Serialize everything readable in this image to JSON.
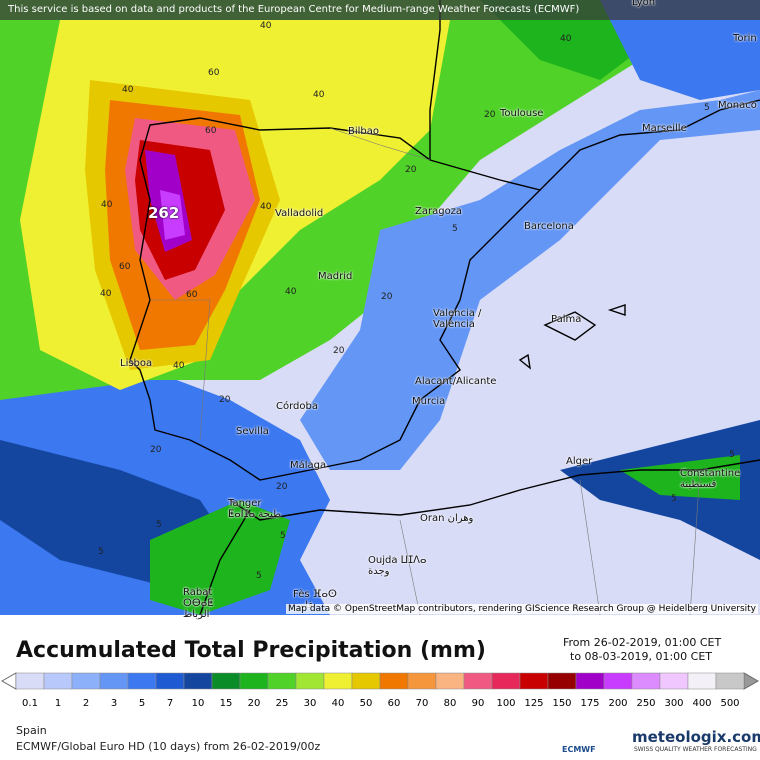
{
  "header": {
    "notice": "This service is based on data and products of the European Centre for Medium-range Weather Forecasts (ECMWF)"
  },
  "map": {
    "cities": [
      "Lyon",
      "Torin",
      "Monaco",
      "Toulouse",
      "Marseille",
      "Bilbao",
      "Valladolid",
      "Zaragoza",
      "Barcelona",
      "Madrid",
      "Valencia / València",
      "Palma",
      "Lisboa",
      "Alacant/Alicante",
      "Murcia",
      "Córdoba",
      "Sevilla",
      "Málaga",
      "Alger",
      "Constantine قسنطينة",
      "Tanger ⵟⴰⵏⵊⴰ طنجة",
      "Oran وهران",
      "Oujda ⵡⵊⴷⴰ وجدة",
      "Rabat ⵔⴱⴰⵟ الرباط",
      "Fès ⴼⴰⵙ فاس"
    ],
    "contour_labels": [
      40,
      60,
      40,
      40,
      60,
      40,
      262,
      40,
      60,
      40,
      40,
      20,
      20,
      40,
      20,
      20,
      5,
      5,
      5,
      20,
      5,
      20,
      40,
      5,
      5,
      5,
      5,
      60,
      20
    ],
    "attribution": "Map data © OpenStreetMap contributors, rendering GIScience Research Group @ Heidelberg University"
  },
  "legend": {
    "title": "Accumulated Total Precipitation (mm)",
    "from": "From 26-02-2019, 01:00 CET",
    "to": "to 08-03-2019, 01:00 CET",
    "levels": [
      {
        "value": 0.1,
        "color": "#d9dcf6"
      },
      {
        "value": 1,
        "color": "#b8c8fa"
      },
      {
        "value": 2,
        "color": "#8cb0fa"
      },
      {
        "value": 3,
        "color": "#6496f5"
      },
      {
        "value": 5,
        "color": "#3c78f0"
      },
      {
        "value": 7,
        "color": "#1e5ad2"
      },
      {
        "value": 10,
        "color": "#1446a0"
      },
      {
        "value": 15,
        "color": "#0a8c28"
      },
      {
        "value": 20,
        "color": "#1eb41e"
      },
      {
        "value": 25,
        "color": "#50d228"
      },
      {
        "value": 30,
        "color": "#a0e632"
      },
      {
        "value": 40,
        "color": "#f0f032"
      },
      {
        "value": 50,
        "color": "#e6c800"
      },
      {
        "value": 60,
        "color": "#f07800"
      },
      {
        "value": 70,
        "color": "#f5963c"
      },
      {
        "value": 80,
        "color": "#fab482"
      },
      {
        "value": 90,
        "color": "#f05a82"
      },
      {
        "value": 100,
        "color": "#e6285a"
      },
      {
        "value": 125,
        "color": "#c80000"
      },
      {
        "value": 150,
        "color": "#960000"
      },
      {
        "value": 175,
        "color": "#a000c8"
      },
      {
        "value": 200,
        "color": "#c83cff"
      },
      {
        "value": 250,
        "color": "#dc8cff"
      },
      {
        "value": 300,
        "color": "#f0c8ff"
      },
      {
        "value": 400,
        "color": "#f4f0f8"
      },
      {
        "value": 500,
        "color": "#c8c8c8"
      }
    ]
  },
  "footer": {
    "region": "Spain",
    "model": "ECMWF/Global Euro HD (10 days) from 26-02-2019/00z",
    "ecmwf_logo": "ECMWF",
    "brand": "meteologix.com",
    "tagline": "SWISS QUALITY WEATHER FORECASTING"
  }
}
